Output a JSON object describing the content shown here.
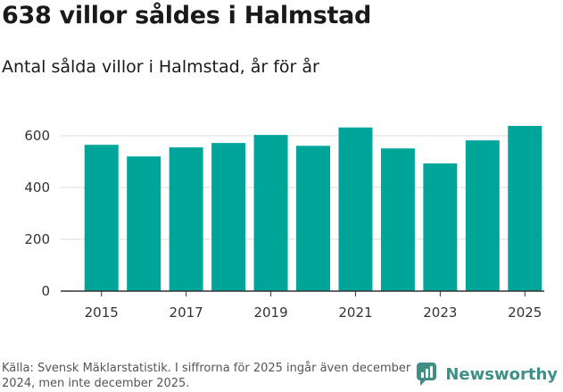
{
  "title": "638 villor såldes i Halmstad",
  "subtitle": "Antal sålda villor i Halmstad, år för år",
  "source_note": "Källa: Svensk Mäklarstatistik. I siffrorna för 2025 ingår även december 2024, men inte december 2025.",
  "brand": "Newsworthy",
  "colors": {
    "bar": "#00a59a",
    "grid": "#dddddd",
    "axis": "#333333",
    "brand": "#3f8f86"
  },
  "chart_data": {
    "type": "bar",
    "title": "Antal sålda villor i Halmstad, år för år",
    "xlabel": "",
    "ylabel": "",
    "categories": [
      "2015",
      "2016",
      "2017",
      "2018",
      "2019",
      "2020",
      "2021",
      "2022",
      "2023",
      "2024",
      "2025"
    ],
    "values": [
      565,
      520,
      555,
      572,
      603,
      561,
      632,
      551,
      493,
      582,
      638
    ],
    "x_tick_labels": [
      "2015",
      "2017",
      "2019",
      "2021",
      "2023",
      "2025"
    ],
    "y_ticks": [
      0,
      200,
      400,
      600
    ],
    "ylim": [
      0,
      700
    ],
    "grid": true
  }
}
